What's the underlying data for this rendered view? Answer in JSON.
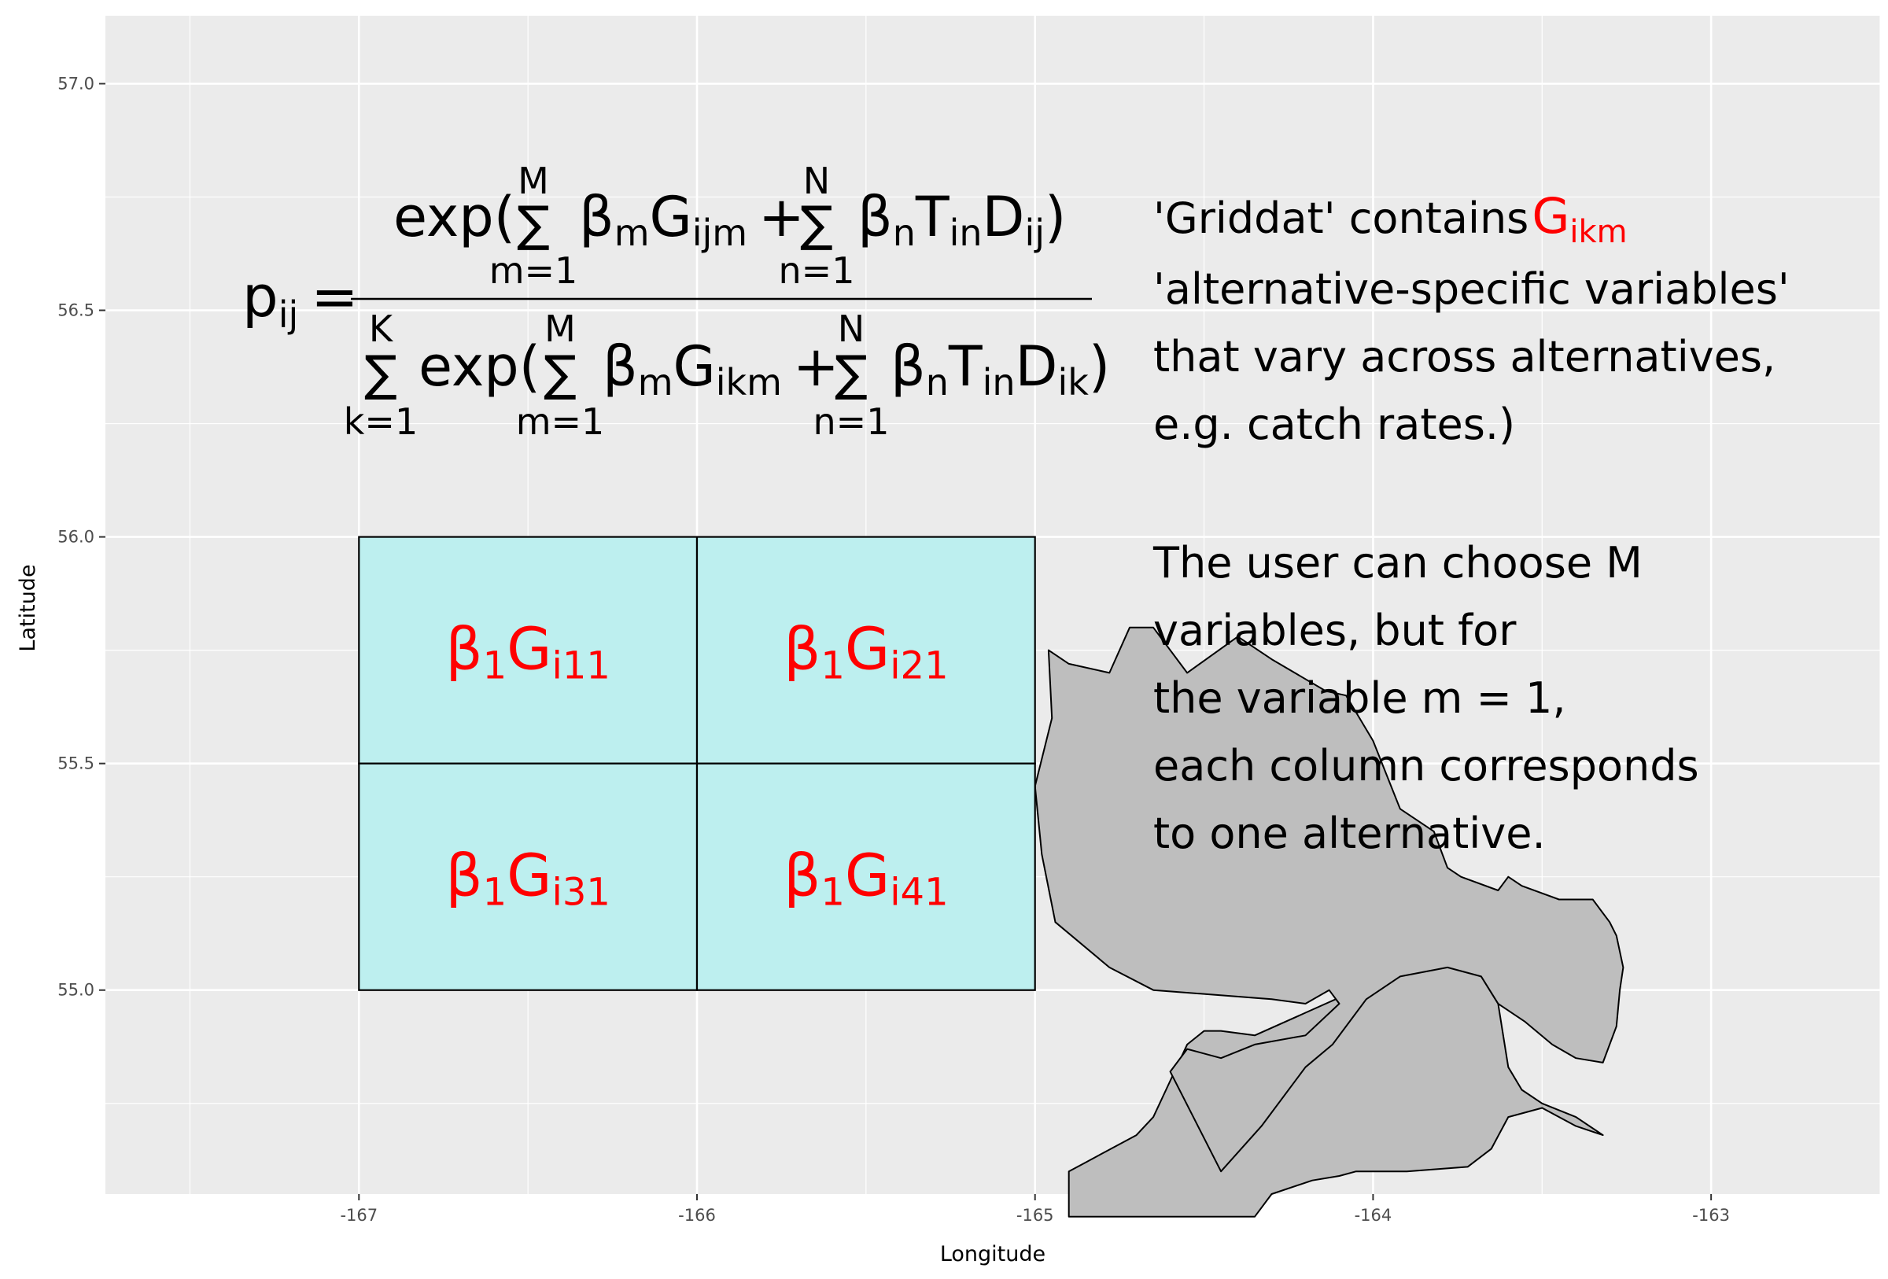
{
  "chart_data": {
    "type": "map",
    "xlabel": "Longitude",
    "ylabel": "Latitude",
    "xlim": [
      -167.75,
      -162.5
    ],
    "ylim": [
      54.55,
      57.15
    ],
    "x_ticks": [
      -167,
      -166,
      -165,
      -164,
      -163
    ],
    "x_tick_labels": [
      "-167",
      "-166",
      "-165",
      "-164",
      "-163"
    ],
    "y_ticks": [
      55.0,
      55.5,
      56.0,
      56.5,
      57.0
    ],
    "y_tick_labels": [
      "55.0",
      "55.5",
      "56.0",
      "56.5",
      "57.0"
    ],
    "grid": true,
    "background": "#ebebeb",
    "grid_cells": [
      {
        "x0": -167,
        "x1": -166,
        "y0": 55.5,
        "y1": 56.0,
        "label": {
          "base": "β",
          "sub1": "1",
          "main": "G",
          "sub2": "i11"
        }
      },
      {
        "x0": -166,
        "x1": -165,
        "y0": 55.5,
        "y1": 56.0,
        "label": {
          "base": "β",
          "sub1": "1",
          "main": "G",
          "sub2": "i21"
        }
      },
      {
        "x0": -167,
        "x1": -166,
        "y0": 55.0,
        "y1": 55.5,
        "label": {
          "base": "β",
          "sub1": "1",
          "main": "G",
          "sub2": "i31"
        }
      },
      {
        "x0": -166,
        "x1": -165,
        "y0": 55.0,
        "y1": 55.5,
        "label": {
          "base": "β",
          "sub1": "1",
          "main": "G",
          "sub2": "i41"
        }
      }
    ],
    "cell_fill": "#bdefef",
    "cell_label_color": "#ff0000",
    "land_fill": "#bebebe",
    "land": [
      [
        [
          -164.9,
          54.6
        ],
        [
          -164.85,
          54.62
        ],
        [
          -164.7,
          54.68
        ],
        [
          -164.65,
          54.72
        ],
        [
          -164.6,
          54.8
        ],
        [
          -164.55,
          54.88
        ],
        [
          -164.5,
          54.91
        ],
        [
          -164.45,
          54.91
        ],
        [
          -164.35,
          54.9
        ],
        [
          -164.2,
          54.95
        ],
        [
          -164.05,
          55.0
        ],
        [
          -163.92,
          55.05
        ],
        [
          -163.75,
          55.05
        ],
        [
          -163.68,
          55.03
        ],
        [
          -163.63,
          54.97
        ],
        [
          -163.6,
          54.83
        ],
        [
          -163.56,
          54.78
        ],
        [
          -163.5,
          54.75
        ],
        [
          -163.4,
          54.72
        ],
        [
          -163.32,
          54.68
        ],
        [
          -163.4,
          54.7
        ],
        [
          -163.5,
          54.74
        ],
        [
          -163.6,
          54.72
        ],
        [
          -163.65,
          54.65
        ],
        [
          -163.72,
          54.61
        ],
        [
          -163.9,
          54.6
        ],
        [
          -164.05,
          54.6
        ],
        [
          -164.1,
          54.59
        ],
        [
          -164.18,
          54.58
        ],
        [
          -164.3,
          54.55
        ],
        [
          -164.35,
          54.5
        ],
        [
          -164.9,
          54.5
        ]
      ],
      [
        [
          -163.32,
          54.84
        ],
        [
          -163.28,
          54.92
        ],
        [
          -163.27,
          55.0
        ],
        [
          -163.26,
          55.05
        ],
        [
          -163.28,
          55.12
        ],
        [
          -163.3,
          55.15
        ],
        [
          -163.35,
          55.2
        ],
        [
          -163.45,
          55.2
        ],
        [
          -163.56,
          55.23
        ],
        [
          -163.6,
          55.25
        ],
        [
          -163.63,
          55.22
        ],
        [
          -163.74,
          55.25
        ],
        [
          -163.78,
          55.27
        ],
        [
          -163.82,
          55.35
        ],
        [
          -163.92,
          55.4
        ],
        [
          -164.0,
          55.55
        ],
        [
          -164.08,
          55.65
        ],
        [
          -164.14,
          55.66
        ],
        [
          -164.3,
          55.73
        ],
        [
          -164.4,
          55.78
        ],
        [
          -164.55,
          55.7
        ],
        [
          -164.65,
          55.8
        ],
        [
          -164.72,
          55.8
        ],
        [
          -164.78,
          55.7
        ],
        [
          -164.9,
          55.72
        ],
        [
          -164.96,
          55.75
        ],
        [
          -164.95,
          55.6
        ],
        [
          -165.0,
          55.45
        ],
        [
          -164.98,
          55.3
        ],
        [
          -164.94,
          55.15
        ],
        [
          -164.78,
          55.05
        ],
        [
          -164.65,
          55.0
        ],
        [
          -164.3,
          54.98
        ],
        [
          -164.2,
          54.97
        ],
        [
          -164.13,
          55.0
        ],
        [
          -164.1,
          54.97
        ],
        [
          -164.2,
          54.9
        ],
        [
          -164.35,
          54.88
        ],
        [
          -164.45,
          54.85
        ],
        [
          -164.55,
          54.87
        ],
        [
          -164.6,
          54.82
        ],
        [
          -164.45,
          54.6
        ],
        [
          -164.33,
          54.7
        ],
        [
          -164.2,
          54.83
        ],
        [
          -164.12,
          54.88
        ],
        [
          -164.02,
          54.98
        ],
        [
          -163.92,
          55.03
        ],
        [
          -163.78,
          55.05
        ],
        [
          -163.68,
          55.03
        ],
        [
          -163.63,
          54.97
        ],
        [
          -163.55,
          54.93
        ],
        [
          -163.47,
          54.88
        ],
        [
          -163.4,
          54.85
        ]
      ]
    ]
  },
  "formula": {
    "lhs": "p",
    "lhs_sub": "ij",
    "equals": "=",
    "num_exp": "exp(",
    "sum": "∑",
    "num_sum1_upper": "M",
    "num_sum1_lower": "m=1",
    "beta": "β",
    "sub_m": "m",
    "G": "G",
    "num_G_sub": "ijm",
    "plus": "+",
    "num_sum2_upper": "N",
    "num_sum2_lower": "n=1",
    "sub_n": "n",
    "T": "T",
    "T_sub": "in",
    "D": "D",
    "num_D_sub": "ij",
    "close": ")",
    "den_sum0_upper": "K",
    "den_sum0_lower": "k=1",
    "den_exp": "exp(",
    "den_sum1_upper": "M",
    "den_sum1_lower": "m=1",
    "den_G_sub": "ikm",
    "den_sum2_upper": "N",
    "den_sum2_lower": "n=1",
    "den_D_sub": "ik"
  },
  "note": {
    "line1_prefix": "'Griddat' contains",
    "line1_G": "G",
    "line1_G_sub": "ikm",
    "line1_color": "#ff0000",
    "line2": "'alternative-specific variables'",
    "line3": "that vary across alternatives,",
    "line4": "e.g. catch rates.)",
    "line5": "The user can choose M",
    "line6": "variables, but for",
    "line7": "the variable m = 1,",
    "line8": "each column corresponds",
    "line9": "to one alternative."
  }
}
